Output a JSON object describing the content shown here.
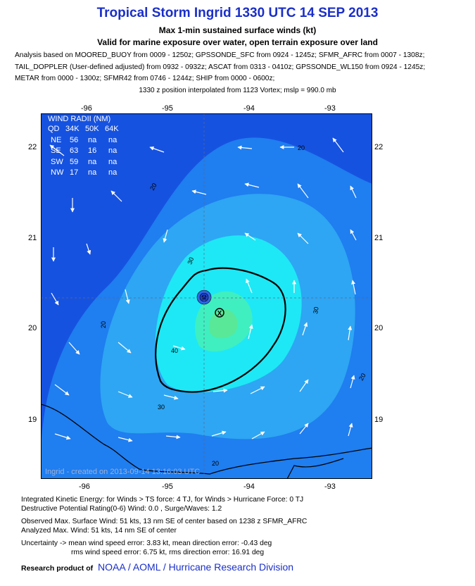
{
  "header": {
    "title": "Tropical Storm Ingrid 1330 UTC 14 SEP 2013",
    "subtitle1": "Max 1-min sustained surface winds (kt)",
    "subtitle2": "Valid for marine exposure over water, open terrain exposure over land",
    "analysis_lines": [
      "Analysis based on MOORED_BUOY from 0009 - 1250z; GPSSONDE_SFC from 0924 - 1245z; SFMR_AFRC from 0007 - 1308z;",
      "TAIL_DOPPLER (User-defined adjusted) from 0932 - 0932z; ASCAT from 0313 - 0410z; GPSSONDE_WL150 from 0924 - 1245z;",
      "METAR from 0000 - 1300z; SFMR42 from 0746 - 1244z; SHIP from 0000 - 0600z;"
    ],
    "position_line": "1330 z position interpolated from 1123 Vortex; mslp = 990.0 mb"
  },
  "map": {
    "lon_labels": [
      "-96",
      "-95",
      "-94",
      "-93"
    ],
    "lat_labels": [
      "22",
      "21",
      "20",
      "19"
    ],
    "contour_labels": [
      "20",
      "20",
      "20",
      "20",
      "20",
      "30",
      "30",
      "30",
      "40"
    ],
    "watermark": "Ingrid - created on 2013-09-14 13:16:03 UTC",
    "colors": {
      "ocean_dark": "#1652e0",
      "band_20": "#1f7ef0",
      "band_30": "#2ea6f3",
      "band_40": "#1ee8f5",
      "band_50": "#40efbf",
      "core": "#58e898",
      "land_line": "#000000",
      "max_contour": "#000000"
    },
    "wind_radii": {
      "title": "WIND RADII (NM)",
      "headers": [
        "QD",
        "34K",
        "50K",
        "64K"
      ],
      "rows": [
        [
          "NE",
          "56",
          "na",
          "na"
        ],
        [
          "SE",
          "63",
          "16",
          "na"
        ],
        [
          "SW",
          "59",
          "na",
          "na"
        ],
        [
          "NW",
          "17",
          "na",
          "na"
        ]
      ]
    },
    "center_symbol": "X"
  },
  "footer": {
    "ike": "Integrated Kinetic Energy: for Winds > TS force: 4 TJ, for Winds > Hurricane Force: 0 TJ",
    "destructive": "Destructive Potential Rating(0-6)  Wind: 0.0 , Surge/Waves: 1.2",
    "observed": "Observed Max. Surface Wind: 51 kts, 13 nm SE of center based on 1238 z SFMR_AFRC",
    "analyzed": "Analyzed Max. Wind: 51 kts, 14 nm  SE of center",
    "uncertainty1": "Uncertainty -> mean wind speed error:  3.83 kt, mean direction error:  -0.43 deg",
    "uncertainty2": "rms wind speed error: 6.75 kt, rms direction error: 16.91 deg",
    "research_label": "Research product of",
    "research_org": "NOAA  /  AOML  /  Hurricane Research Division"
  }
}
